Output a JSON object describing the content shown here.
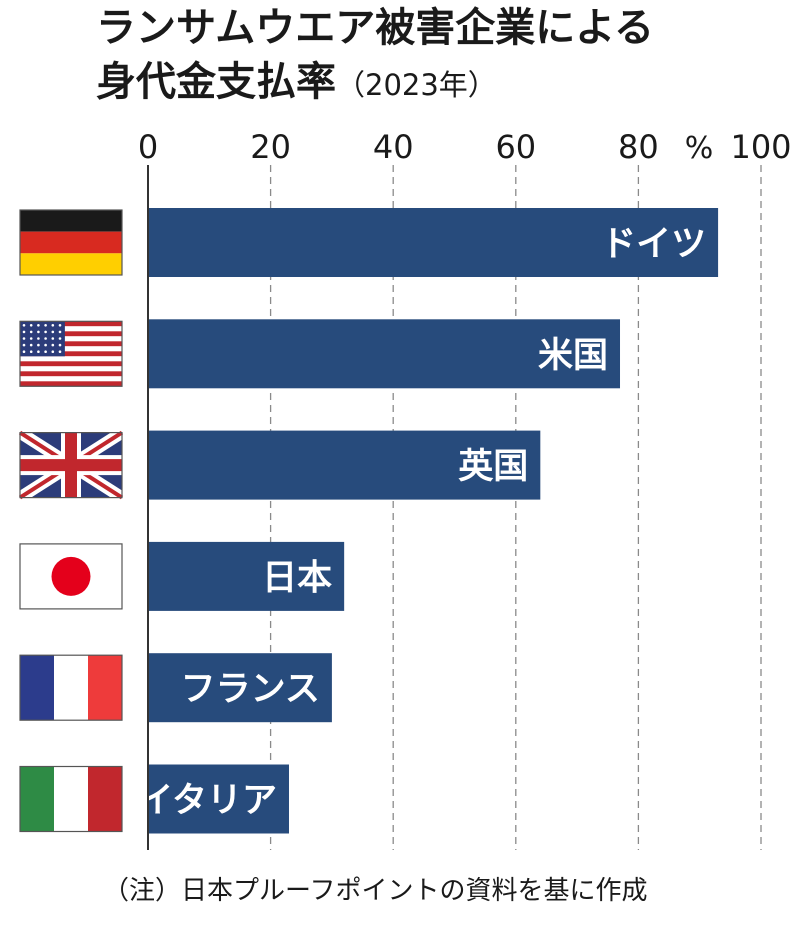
{
  "title": {
    "line1": "ランサムウエア被害企業による",
    "line2": "身代金支払率",
    "year": "（2023年）"
  },
  "chart_data": {
    "type": "bar",
    "orientation": "horizontal",
    "title": "ランサムウエア被害企業による身代金支払率（2023年）",
    "xlim": [
      0,
      100
    ],
    "ticks": [
      "0",
      "20",
      "40",
      "60",
      "80",
      "100"
    ],
    "unit": "%",
    "grid": "dashed vertical",
    "categories": [
      "ドイツ",
      "米国",
      "英国",
      "日本",
      "フランス",
      "イタリア"
    ],
    "values": [
      93,
      77,
      64,
      32,
      30,
      23
    ],
    "flags": [
      "germany-flag-icon",
      "usa-flag-icon",
      "uk-flag-icon",
      "japan-flag-icon",
      "france-flag-icon",
      "italy-flag-icon"
    ],
    "colors": {
      "bar": "#274b7c",
      "bar_label": "#ffffff",
      "axis": "#333333",
      "grid": "#8a8a8a"
    }
  },
  "note": "（注）日本プルーフポイントの資料を基に作成"
}
